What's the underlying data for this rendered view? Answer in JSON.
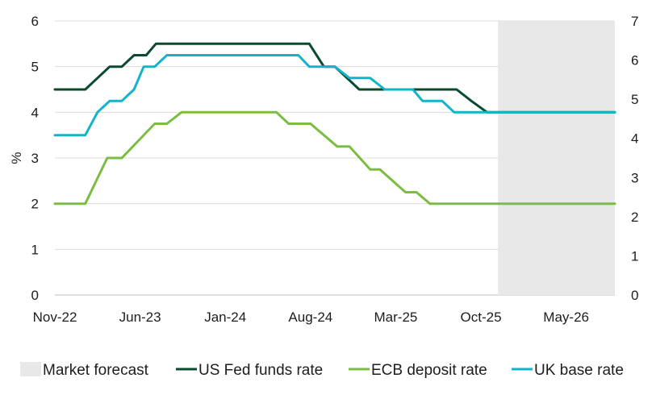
{
  "chart_data": {
    "type": "line",
    "title": "",
    "ylabel": "%",
    "ylim": [
      0,
      6
    ],
    "y_ticks": [
      0,
      1,
      2,
      3,
      4,
      5,
      6
    ],
    "y2lim": [
      0,
      7
    ],
    "y2_ticks": [
      0,
      1,
      2,
      3,
      4,
      5,
      6,
      7
    ],
    "x_range_months": [
      0,
      46
    ],
    "x_ticks": [
      {
        "label": "Nov-22",
        "month": 0
      },
      {
        "label": "Jun-23",
        "month": 7
      },
      {
        "label": "Jan-24",
        "month": 14
      },
      {
        "label": "Aug-24",
        "month": 21
      },
      {
        "label": "Mar-25",
        "month": 28
      },
      {
        "label": "Oct-25",
        "month": 35
      },
      {
        "label": "May-26",
        "month": 42
      }
    ],
    "shaded_region": {
      "name": "Market forecast",
      "start_month": 36.4,
      "end_month": 46,
      "color": "#e8e8e8"
    },
    "series": [
      {
        "name": "US Fed funds rate",
        "color": "#0a4a2e",
        "points": [
          [
            0,
            4.5
          ],
          [
            2.5,
            4.5
          ],
          [
            3.5,
            4.75
          ],
          [
            4.5,
            5.0
          ],
          [
            5.5,
            5.0
          ],
          [
            6.5,
            5.25
          ],
          [
            7.5,
            5.25
          ],
          [
            8.3,
            5.5
          ],
          [
            20.9,
            5.5
          ],
          [
            22.1,
            5.0
          ],
          [
            23,
            5.0
          ],
          [
            25,
            4.5
          ],
          [
            29,
            4.5
          ],
          [
            33,
            4.5
          ],
          [
            34.2,
            4.25
          ],
          [
            35.5,
            4.0
          ],
          [
            46,
            4.0
          ]
        ]
      },
      {
        "name": "ECB deposit rate",
        "color": "#7bbd43",
        "points": [
          [
            0,
            2.0
          ],
          [
            2.5,
            2.0
          ],
          [
            4.3,
            3.0
          ],
          [
            5.5,
            3.0
          ],
          [
            8.2,
            3.75
          ],
          [
            9.2,
            3.75
          ],
          [
            10.4,
            4.0
          ],
          [
            18.2,
            4.0
          ],
          [
            19.2,
            3.75
          ],
          [
            21,
            3.75
          ],
          [
            23.2,
            3.25
          ],
          [
            24.2,
            3.25
          ],
          [
            25.9,
            2.75
          ],
          [
            26.7,
            2.75
          ],
          [
            28.8,
            2.25
          ],
          [
            29.7,
            2.25
          ],
          [
            30.8,
            2.0
          ],
          [
            46,
            2.0
          ]
        ]
      },
      {
        "name": "UK base rate",
        "color": "#14b3cc",
        "points": [
          [
            0,
            3.5
          ],
          [
            2.5,
            3.5
          ],
          [
            3.5,
            4.0
          ],
          [
            4.5,
            4.25
          ],
          [
            5.5,
            4.25
          ],
          [
            6.5,
            4.5
          ],
          [
            7.3,
            5.0
          ],
          [
            8.2,
            5.0
          ],
          [
            9.2,
            5.25
          ],
          [
            20.0,
            5.25
          ],
          [
            20.9,
            5.0
          ],
          [
            23,
            5.0
          ],
          [
            24.2,
            4.75
          ],
          [
            25.9,
            4.75
          ],
          [
            27.1,
            4.5
          ],
          [
            29.4,
            4.5
          ],
          [
            30.2,
            4.25
          ],
          [
            31.8,
            4.25
          ],
          [
            32.8,
            4.0
          ],
          [
            46,
            4.0
          ]
        ]
      }
    ]
  },
  "legend": {
    "items": [
      {
        "label": "Market forecast",
        "kind": "box",
        "color": "#e8e8e8"
      },
      {
        "label": "US Fed funds rate",
        "kind": "line",
        "color": "#0a4a2e"
      },
      {
        "label": "ECB deposit rate",
        "kind": "line",
        "color": "#7bbd43"
      },
      {
        "label": "UK base rate",
        "kind": "line",
        "color": "#14b3cc"
      }
    ]
  }
}
